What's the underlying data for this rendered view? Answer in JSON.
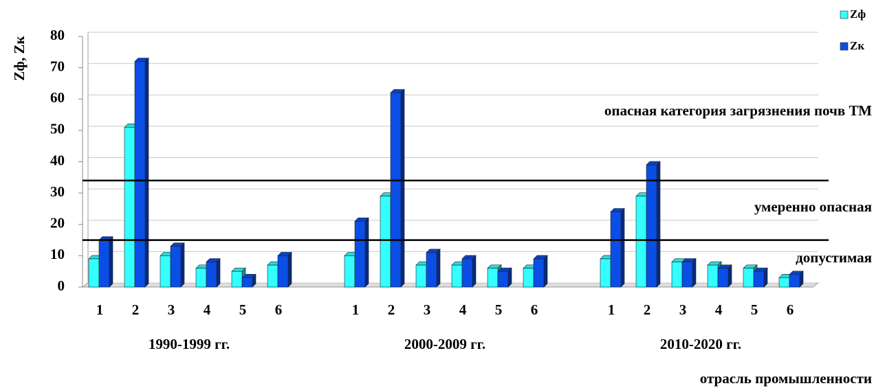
{
  "chart_data": {
    "type": "bar",
    "y_label": "Zф, Zк",
    "x_label": "отрасль промышленности",
    "categories": [
      "1",
      "2",
      "3",
      "4",
      "5",
      "6",
      "1",
      "2",
      "3",
      "4",
      "5",
      "6",
      "1",
      "2",
      "3",
      "4",
      "5",
      "6"
    ],
    "group_labels": [
      "1990-1999 гг.",
      "2000-2009 гг.",
      "2010-2020 гг."
    ],
    "series": [
      {
        "name": "Zф",
        "color": "#33ffff",
        "values": [
          9,
          51,
          10,
          6,
          5,
          7,
          10,
          29,
          7,
          7,
          6,
          6,
          9,
          29,
          8,
          7,
          6,
          3
        ]
      },
      {
        "name": "Zк",
        "color": "#0a4ee6",
        "values": [
          15,
          72,
          13,
          8,
          3,
          10,
          21,
          62,
          11,
          9,
          5,
          9,
          24,
          39,
          8,
          6,
          5,
          4
        ]
      }
    ],
    "reference_lines": [
      34,
      15
    ],
    "annotations": [
      "опасная категория загрязнения почв ТМ",
      "умеренно опасная",
      "допустимая"
    ],
    "ylim": [
      0,
      80
    ],
    "yticks": [
      0,
      10,
      20,
      30,
      40,
      50,
      60,
      70,
      80
    ],
    "grid": true,
    "legend": "top-right"
  }
}
